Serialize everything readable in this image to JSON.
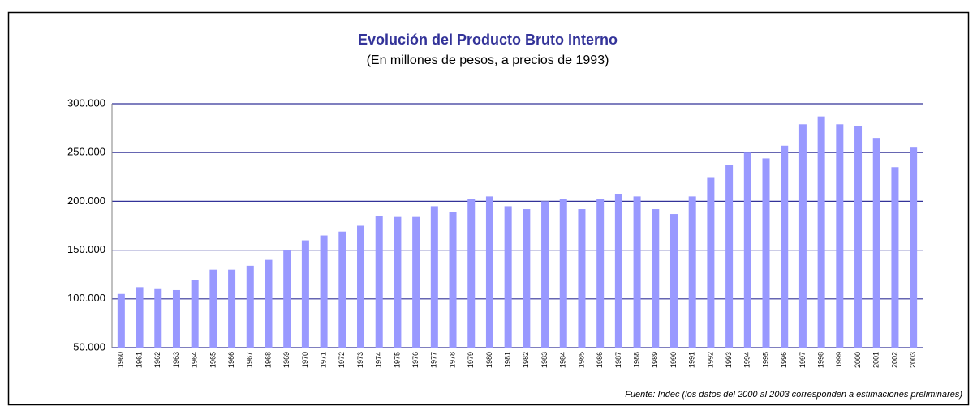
{
  "chart_data": {
    "type": "bar",
    "title": "Evolución del Producto Bruto Interno",
    "subtitle": "(En millones de pesos, a precios de 1993)",
    "source": "Fuente: Indec (los datos del 2000 al 2003 corresponden a estimaciones preliminares)",
    "categories": [
      "1960",
      "1961",
      "1962",
      "1963",
      "1964",
      "1965",
      "1966",
      "1967",
      "1968",
      "1969",
      "1970",
      "1971",
      "1972",
      "1973",
      "1974",
      "1975",
      "1976",
      "1977",
      "1978",
      "1979",
      "1980",
      "1981",
      "1982",
      "1983",
      "1984",
      "1985",
      "1986",
      "1987",
      "1988",
      "1989",
      "1990",
      "1991",
      "1992",
      "1993",
      "1994",
      "1995",
      "1996",
      "1997",
      "1998",
      "1999",
      "2000",
      "2001",
      "2002",
      "2003"
    ],
    "values": [
      105000,
      112000,
      110000,
      109000,
      119000,
      130000,
      130000,
      134000,
      140000,
      150000,
      160000,
      165000,
      169000,
      175000,
      185000,
      184000,
      184000,
      195000,
      189000,
      202000,
      205000,
      195000,
      192000,
      200000,
      202000,
      192000,
      202000,
      207000,
      205000,
      192000,
      187000,
      205000,
      224000,
      237000,
      250000,
      244000,
      257000,
      279000,
      287000,
      279000,
      277000,
      265000,
      235000,
      255000
    ],
    "color": "#9999ff",
    "ylim": [
      50000,
      300000
    ],
    "yticks": [
      {
        "value": 50000,
        "label": "50.000"
      },
      {
        "value": 100000,
        "label": "100.000"
      },
      {
        "value": 150000,
        "label": "150.000"
      },
      {
        "value": 200000,
        "label": "200.000"
      },
      {
        "value": 250000,
        "label": "250.000"
      },
      {
        "value": 300000,
        "label": "300.000"
      }
    ],
    "grid": true
  }
}
